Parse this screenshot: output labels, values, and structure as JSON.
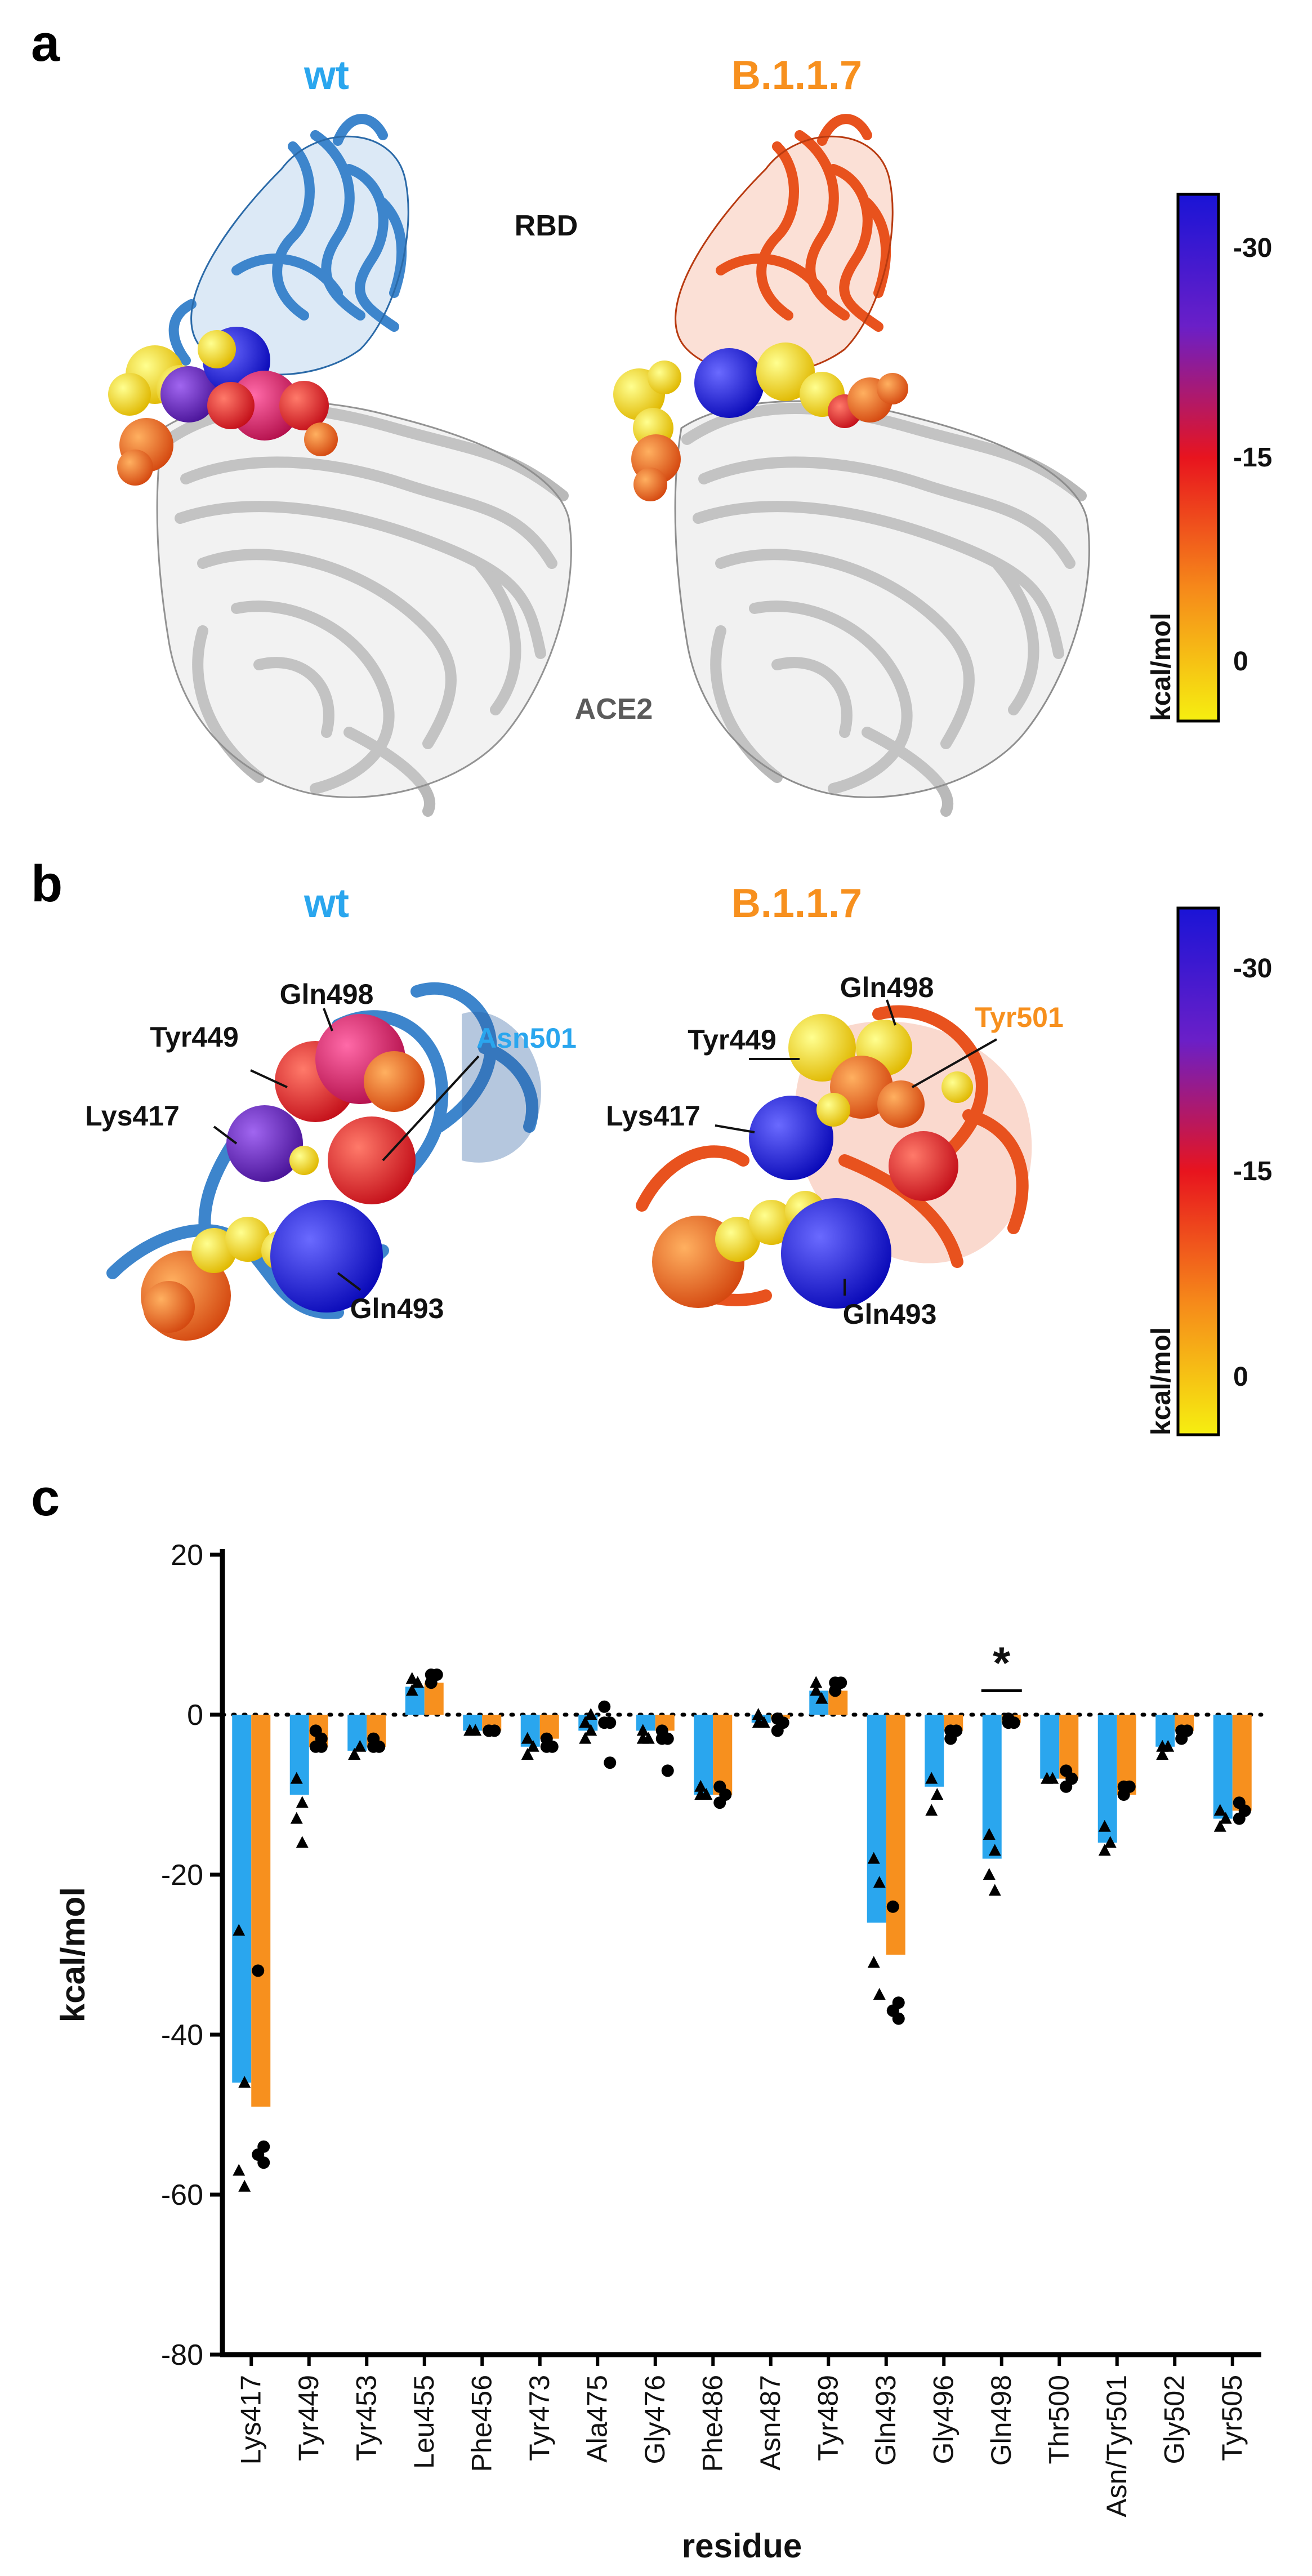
{
  "panel_a": {
    "letter": "a",
    "title_wt": "wt",
    "title_b117": "B.1.1.7",
    "label_rbd": "RBD",
    "label_ace2": "ACE2",
    "colorbar": {
      "ticks": [
        "-30",
        "-15",
        "0"
      ],
      "unit": "kcal/mol"
    }
  },
  "panel_b": {
    "letter": "b",
    "title_wt": "wt",
    "title_b117": "B.1.1.7",
    "wt_labels": [
      "Gln498",
      "Tyr449",
      "Asn501",
      "Lys417",
      "Gln493"
    ],
    "b117_labels": [
      "Gln498",
      "Tyr449",
      "Tyr501",
      "Lys417",
      "Gln493"
    ],
    "colorbar": {
      "ticks": [
        "-30",
        "-15",
        "0"
      ],
      "unit": "kcal/mol"
    }
  },
  "colors": {
    "wt": "#2aa6ee",
    "b117": "#f7901e",
    "cb_top": "#1a14d6",
    "cb_mid": "#e8141e",
    "cb_bot": "#f6ef10"
  },
  "chart_data": {
    "letter": "c",
    "type": "bar",
    "ylabel": "kcal/mol",
    "xlabel": "residue",
    "ylim": [
      -80,
      20
    ],
    "yticks": [
      20,
      0,
      -20,
      -40,
      -60,
      -80
    ],
    "categories": [
      "Lys417",
      "Tyr449",
      "Tyr453",
      "Leu455",
      "Phe456",
      "Tyr473",
      "Ala475",
      "Gly476",
      "Phe486",
      "Asn487",
      "Tyr489",
      "Gln493",
      "Gly496",
      "Gln498",
      "Thr500",
      "Asn/Tyr501",
      "Gly502",
      "Tyr505"
    ],
    "series": [
      {
        "values": [
          -46,
          -10,
          -4.5,
          3.5,
          -2,
          -4,
          -2,
          -2,
          -10,
          -1,
          3,
          -26,
          -9,
          -18,
          -8,
          -16,
          -4,
          -13
        ]
      },
      {
        "values": [
          -49,
          -4,
          -4,
          4,
          -2,
          -3,
          0,
          -2,
          -10,
          -0.5,
          3,
          -30,
          -2,
          -1,
          -8,
          -10,
          -2,
          -12
        ]
      }
    ],
    "points": {
      "wt": [
        [
          -27,
          -46,
          -57,
          -59
        ],
        [
          -8,
          -11,
          -13,
          -16
        ],
        [
          -5,
          -4,
          -5
        ],
        [
          3,
          4,
          4.5
        ],
        [
          -2,
          -2,
          -2
        ],
        [
          -3,
          -4,
          -5
        ],
        [
          -3,
          -2,
          -1,
          0
        ],
        [
          -2,
          -3,
          -3
        ],
        [
          -9,
          -10,
          -10
        ],
        [
          0,
          -1,
          -1
        ],
        [
          3,
          2,
          4
        ],
        [
          -18,
          -21,
          -31,
          -35
        ],
        [
          -8,
          -10,
          -12
        ],
        [
          -15,
          -17,
          -20,
          -22
        ],
        [
          -8,
          -8,
          -8
        ],
        [
          -14,
          -16,
          -17
        ],
        [
          -4,
          -4,
          -5
        ],
        [
          -12,
          -13,
          -14
        ]
      ],
      "b117": [
        [
          -32,
          -54,
          -55,
          -56
        ],
        [
          -2,
          -3,
          -4,
          -4
        ],
        [
          -3,
          -4,
          -4
        ],
        [
          4,
          5,
          5
        ],
        [
          -2,
          -2,
          -2
        ],
        [
          -3,
          -4,
          -4
        ],
        [
          1,
          -1,
          -1,
          -6
        ],
        [
          -2,
          -3,
          -3,
          -7
        ],
        [
          -9,
          -10,
          -11
        ],
        [
          -0.5,
          -1,
          -2
        ],
        [
          3,
          4,
          4
        ],
        [
          -24,
          -36,
          -37,
          -38
        ],
        [
          -2,
          -2,
          -3
        ],
        [
          -0.5,
          -1,
          -1
        ],
        [
          -7,
          -8,
          -9
        ],
        [
          -9,
          -9,
          -10
        ],
        [
          -2,
          -2,
          -3
        ],
        [
          -11,
          -12,
          -13
        ]
      ]
    },
    "annotation": "*"
  }
}
